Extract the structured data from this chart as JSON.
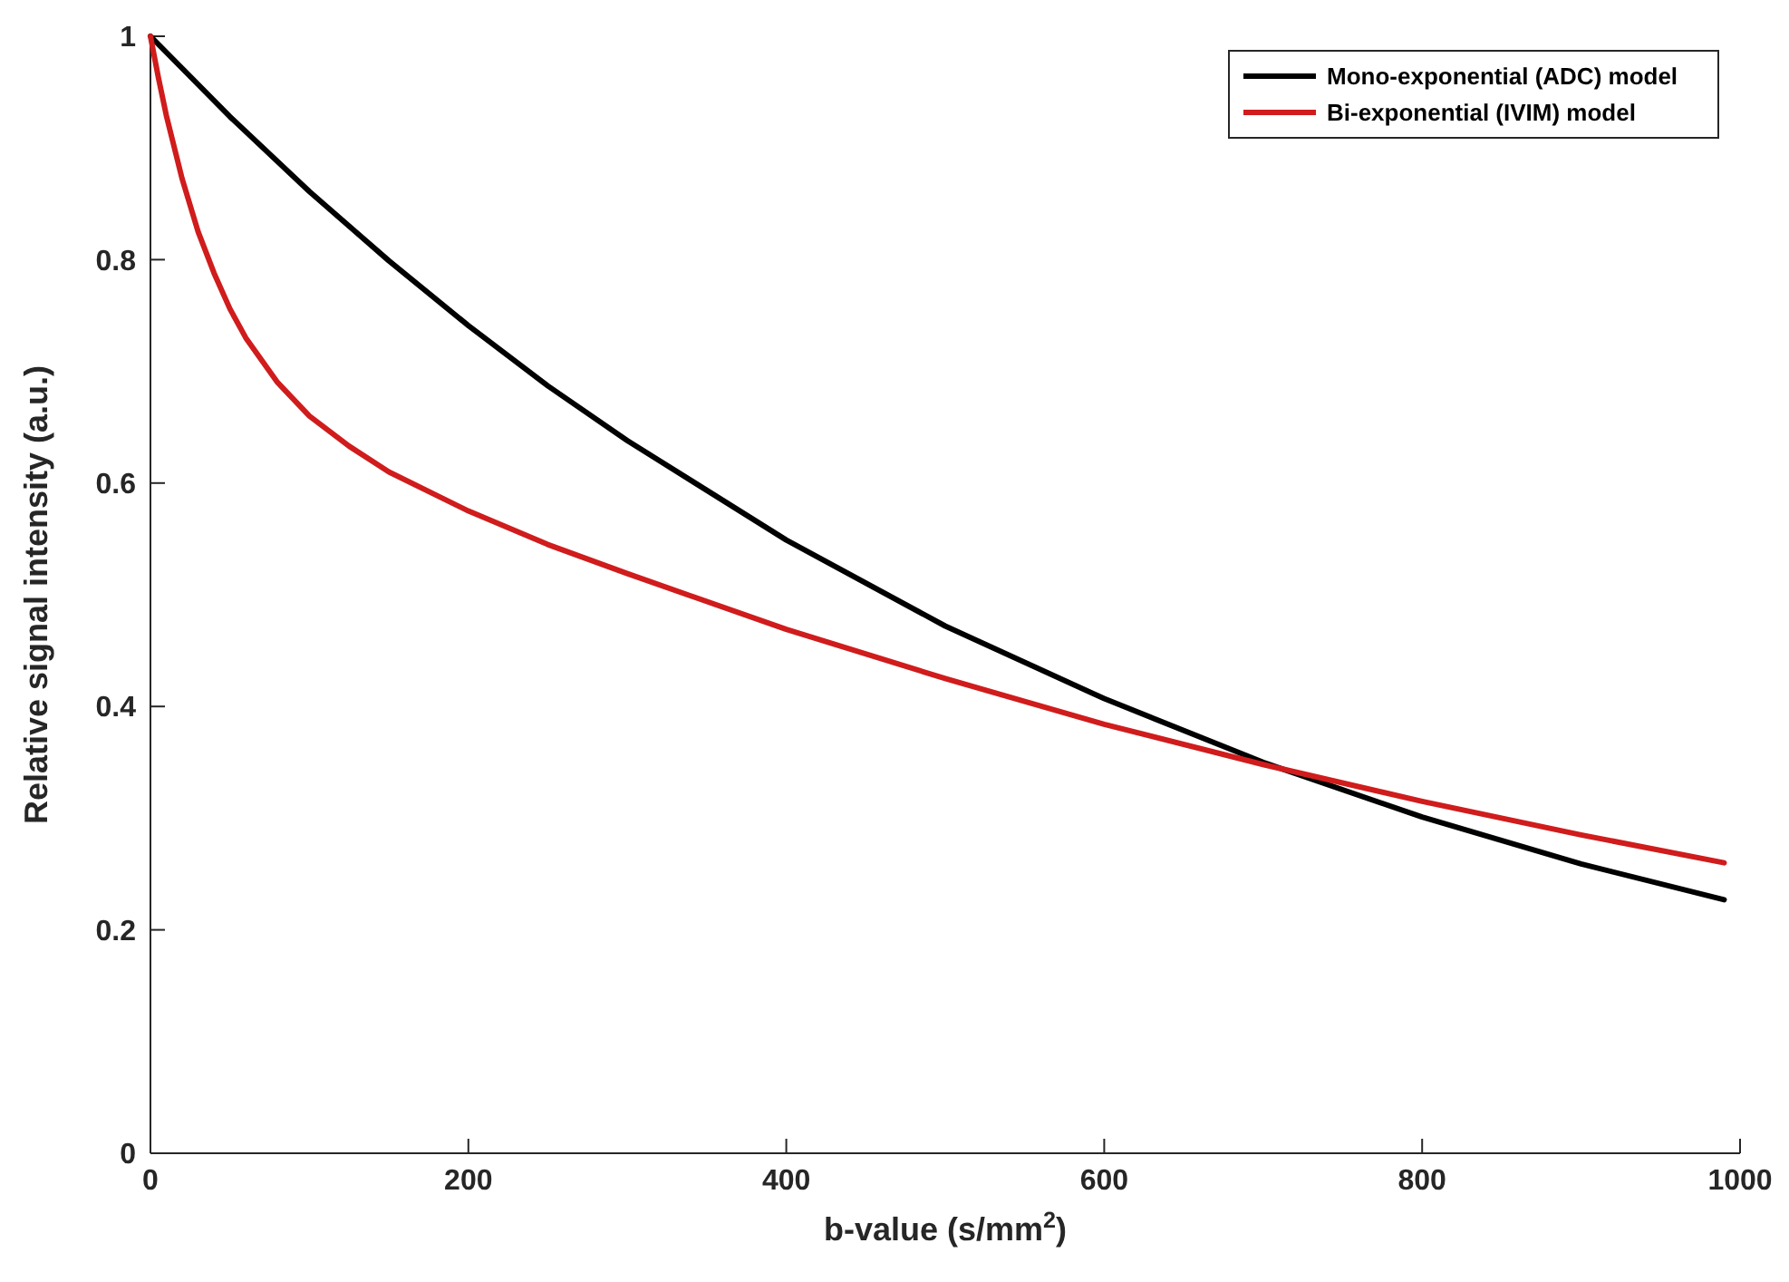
{
  "chart_data": {
    "type": "line",
    "xlabel": "b-value (s/mm$^{2}$)",
    "ylabel": "Relative signal intensity (a.u.)",
    "xlim": [
      0,
      1000
    ],
    "ylim": [
      0,
      1
    ],
    "xticks": [
      0,
      200,
      400,
      600,
      800,
      1000
    ],
    "yticks": [
      0,
      0.2,
      0.4,
      0.6,
      0.8,
      1
    ],
    "legend": "top right",
    "grid": false,
    "marker": "none",
    "line_style": "solid",
    "series": [
      {
        "name": "Mono-exponential (ADC) model",
        "color": "#000000",
        "x": [
          0,
          50,
          100,
          150,
          200,
          250,
          300,
          400,
          500,
          600,
          700,
          800,
          900,
          990
        ],
        "values": [
          1,
          0.928,
          0.861,
          0.799,
          0.741,
          0.687,
          0.638,
          0.549,
          0.472,
          0.407,
          0.35,
          0.301,
          0.259,
          0.227
        ]
      },
      {
        "name": "Bi-exponential (IVIM) model",
        "color": "#d01c1c",
        "x": [
          0,
          5,
          10,
          20,
          30,
          40,
          50,
          60,
          80,
          100,
          125,
          150,
          200,
          250,
          300,
          400,
          500,
          600,
          700,
          800,
          900,
          990
        ],
        "values": [
          1,
          0.963,
          0.929,
          0.872,
          0.825,
          0.788,
          0.756,
          0.73,
          0.69,
          0.66,
          0.633,
          0.61,
          0.575,
          0.545,
          0.519,
          0.469,
          0.425,
          0.384,
          0.348,
          0.315,
          0.285,
          0.26
        ]
      }
    ]
  }
}
